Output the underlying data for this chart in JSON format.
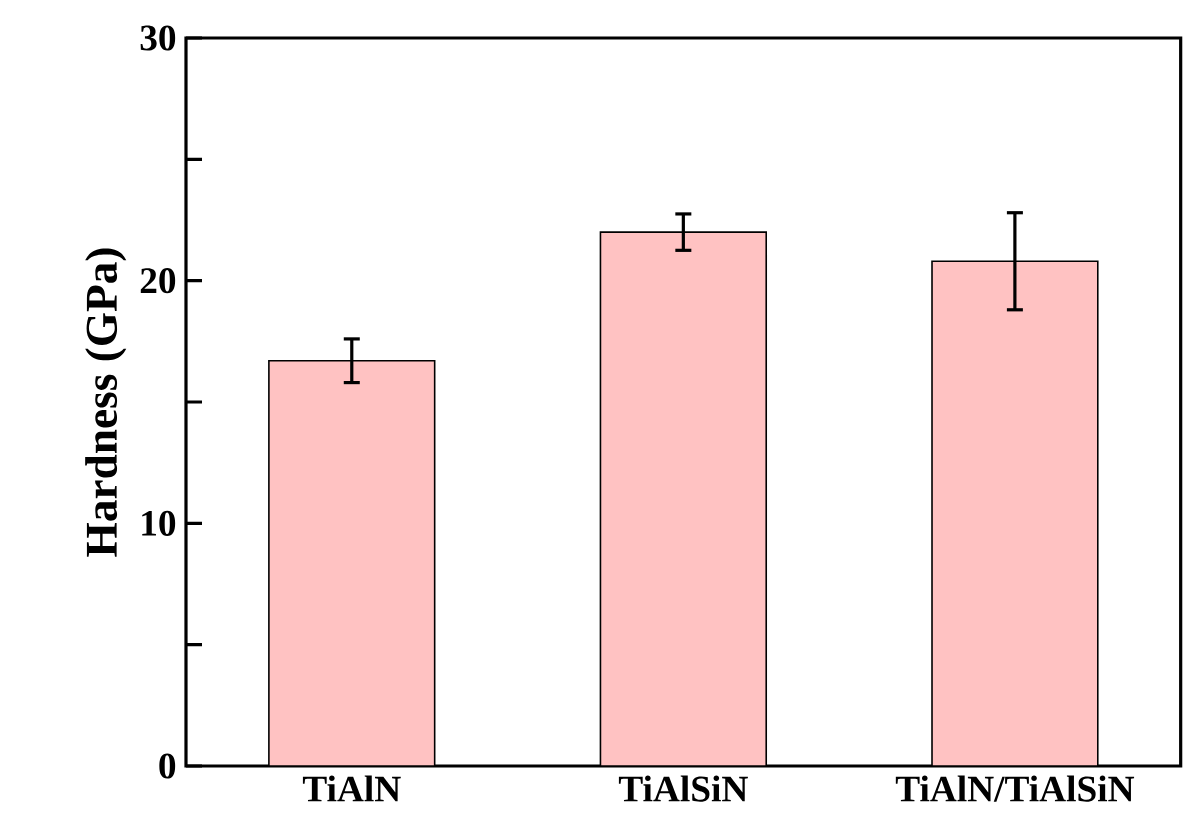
{
  "chart_data": {
    "type": "bar",
    "ylabel": "Hardness (GPa)",
    "categories": [
      "TiAlN",
      "TiAlSiN",
      "TiAlN/TiAlSiN"
    ],
    "values": [
      16.7,
      22.0,
      20.8
    ],
    "errors": [
      0.9,
      0.75,
      2.0
    ],
    "color": "#ffc2c2",
    "ylim": [
      0,
      30
    ],
    "yticks": [
      0,
      {
        "value": 5,
        "label": null
      },
      10,
      {
        "value": 15,
        "label": null
      },
      20,
      {
        "value": 25,
        "label": null
      },
      30
    ]
  }
}
